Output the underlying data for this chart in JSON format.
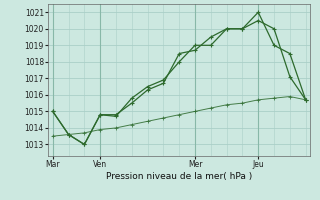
{
  "background_color": "#cce8e0",
  "grid_color": "#aacfc8",
  "line_color": "#2d6a2d",
  "title": "Pression niveau de la mer( hPa )",
  "ylim": [
    1012.3,
    1021.5
  ],
  "yticks": [
    1013,
    1014,
    1015,
    1016,
    1017,
    1018,
    1019,
    1020,
    1021
  ],
  "xtick_labels": [
    "Mar",
    "Ven",
    "Mer",
    "Jeu"
  ],
  "xtick_positions": [
    0,
    3,
    9,
    13
  ],
  "vlines": [
    0,
    3,
    9,
    13
  ],
  "series1": {
    "x": [
      0,
      1,
      2,
      3,
      4,
      5,
      6,
      7,
      8,
      9,
      10,
      11,
      12,
      13,
      14,
      15,
      16
    ],
    "y": [
      1015.0,
      1013.6,
      1013.0,
      1014.8,
      1014.7,
      1015.8,
      1016.5,
      1016.9,
      1018.0,
      1019.0,
      1019.0,
      1020.0,
      1020.0,
      1020.5,
      1020.0,
      1017.1,
      1015.7
    ]
  },
  "series2": {
    "x": [
      0,
      1,
      2,
      3,
      4,
      5,
      6,
      7,
      8,
      9,
      10,
      11,
      12,
      13,
      14,
      15,
      16
    ],
    "y": [
      1015.0,
      1013.6,
      1013.0,
      1014.8,
      1014.8,
      1015.5,
      1016.3,
      1016.7,
      1018.5,
      1018.7,
      1019.5,
      1020.0,
      1020.0,
      1021.0,
      1019.0,
      1018.5,
      1015.7
    ]
  },
  "series3": {
    "x": [
      0,
      1,
      2,
      3,
      4,
      5,
      6,
      7,
      8,
      9,
      10,
      11,
      12,
      13,
      14,
      15,
      16
    ],
    "y": [
      1013.5,
      1013.6,
      1013.7,
      1013.9,
      1014.0,
      1014.2,
      1014.4,
      1014.6,
      1014.8,
      1015.0,
      1015.2,
      1015.4,
      1015.5,
      1015.7,
      1015.8,
      1015.9,
      1015.7
    ]
  }
}
